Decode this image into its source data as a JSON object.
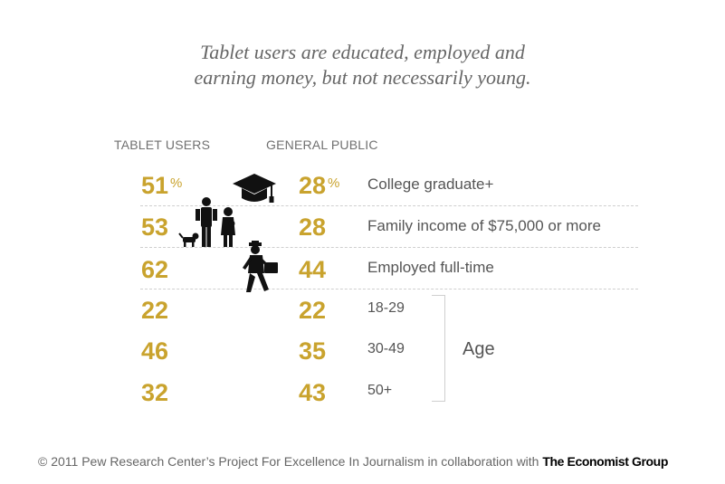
{
  "title_line1": "Tablet users are educated, employed and",
  "title_line2": "earning money, but not necessarily young.",
  "footer": {
    "credit": "© 2011 Pew Research Center’s Project For Excellence In Journalism in collaboration with",
    "brand": "The Economist Group"
  },
  "colors": {
    "value": "#c9a32e",
    "text": "#555555",
    "title": "#666666",
    "rule": "#cfcfcf"
  },
  "icons": [
    "graduation-cap-icon",
    "family-icon",
    "businessman-icon"
  ],
  "chart_data": {
    "type": "table",
    "columns": [
      "TABLET USERS",
      "GENERAL PUBLIC"
    ],
    "rows": [
      {
        "label": "College graduate+",
        "tablet": "51",
        "general": "28",
        "unit": "%"
      },
      {
        "label": "Family income of $75,000 or more",
        "tablet": "53",
        "general": "28"
      },
      {
        "label": "Employed full-time",
        "tablet": "62",
        "general": "44"
      }
    ],
    "age": {
      "title": "Age",
      "rows": [
        {
          "label": "18-29",
          "tablet": "22",
          "general": "22"
        },
        {
          "label": "30-49",
          "tablet": "46",
          "general": "35"
        },
        {
          "label": "50+",
          "tablet": "32",
          "general": "43"
        }
      ]
    }
  }
}
